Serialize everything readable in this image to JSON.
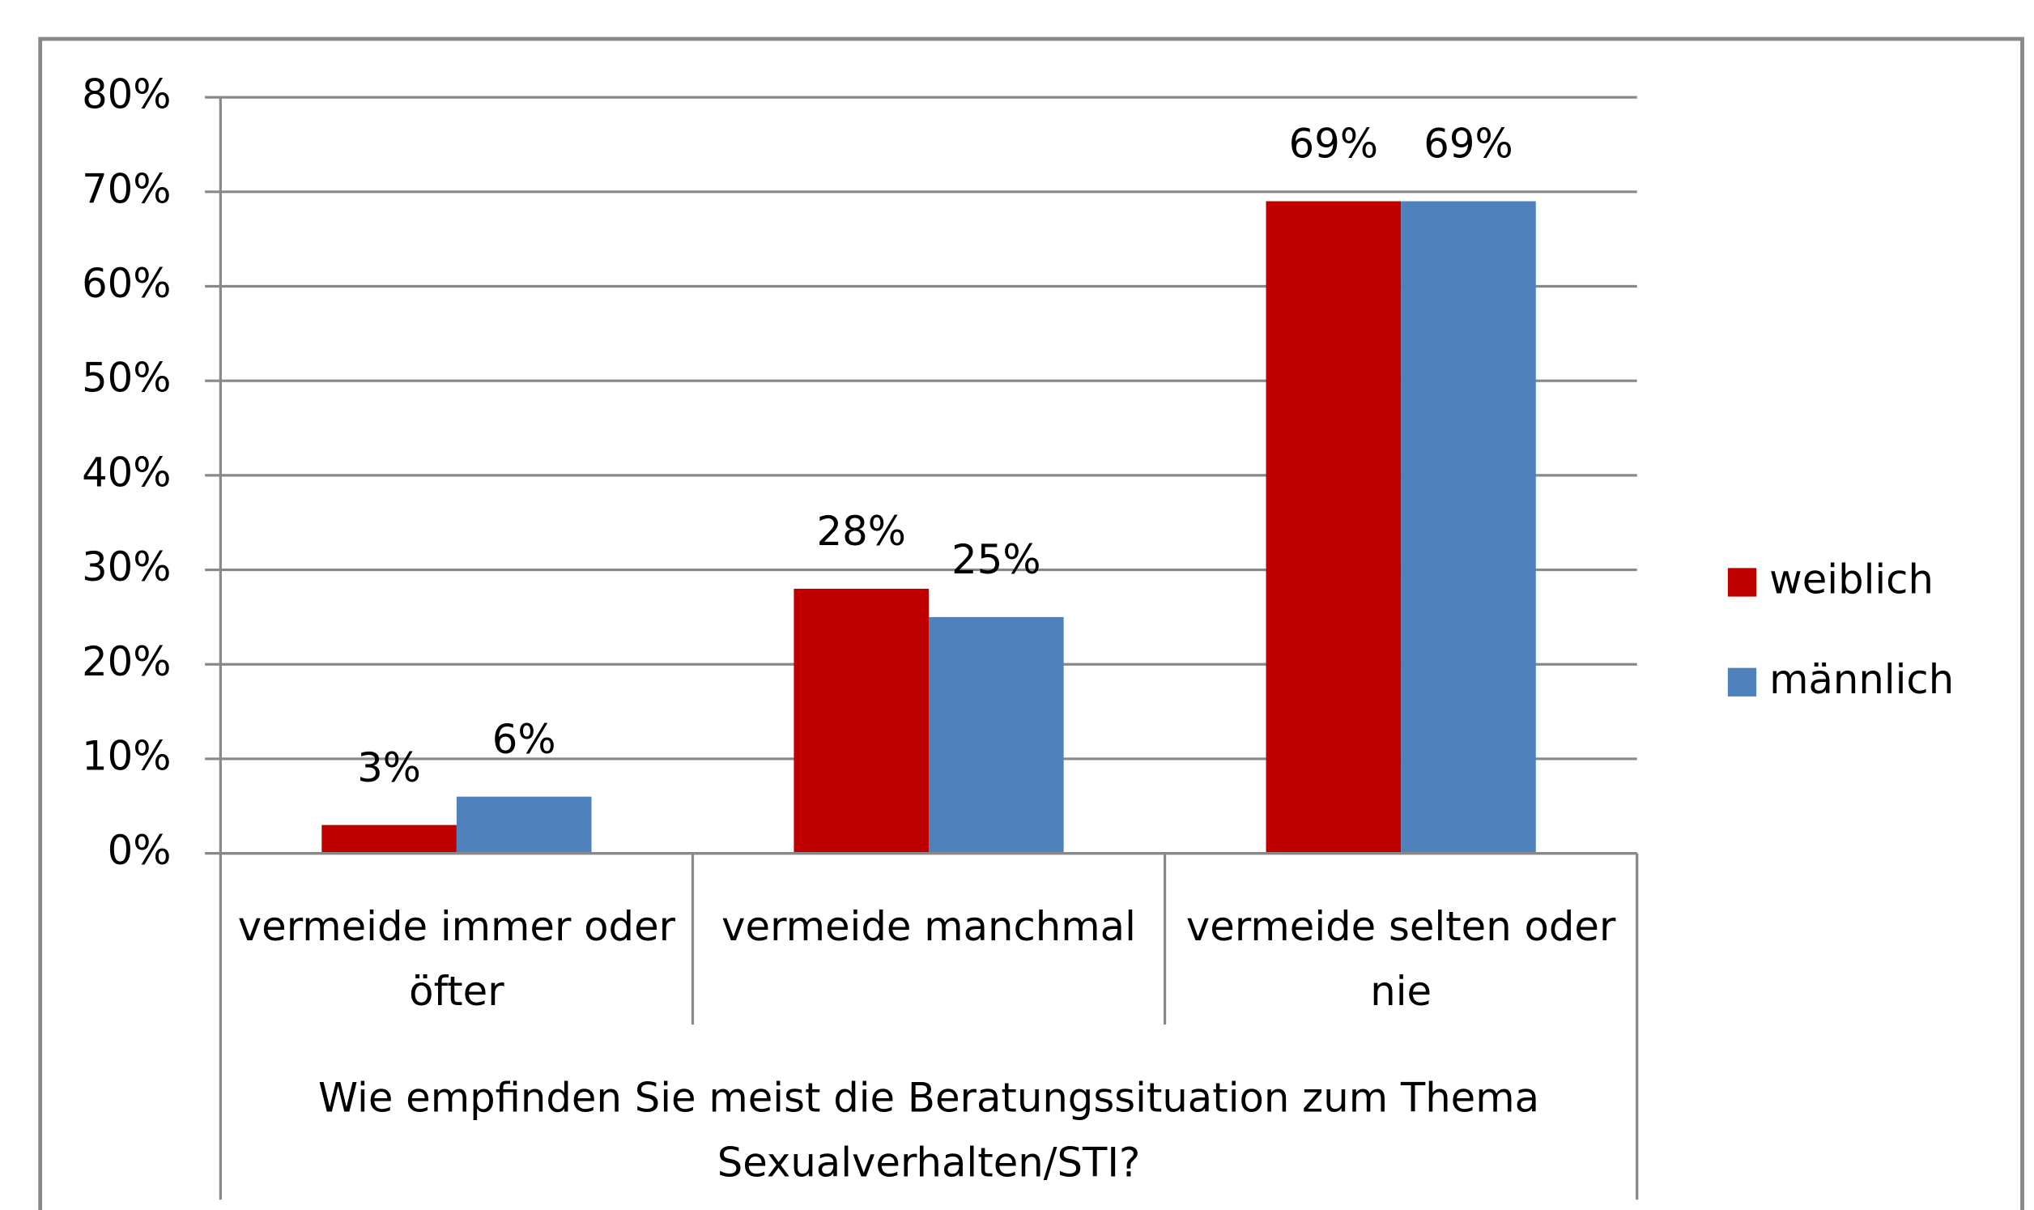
{
  "chart_data": {
    "type": "bar",
    "x_label": "Wie empfinden Sie meist die Beratungssituation zum Thema Sexualverhalten/STI?",
    "categories": [
      "vermeide immer oder öfter",
      "vermeide manchmal",
      "vermeide selten oder nie"
    ],
    "series": [
      {
        "name": "weiblich",
        "color": "#c00000",
        "values": [
          3,
          28,
          69
        ],
        "value_labels": [
          "3%",
          "28%",
          "69%"
        ]
      },
      {
        "name": "männlich",
        "color": "#4f81bd",
        "values": [
          6,
          25,
          69
        ],
        "value_labels": [
          "6%",
          "25%",
          "69%"
        ]
      }
    ],
    "ylim": [
      0,
      80
    ],
    "yticks": [
      {
        "value": 0,
        "label": "0%"
      },
      {
        "value": 10,
        "label": "10%"
      },
      {
        "value": 20,
        "label": "20%"
      },
      {
        "value": 30,
        "label": "30%"
      },
      {
        "value": 40,
        "label": "40%"
      },
      {
        "value": 50,
        "label": "50%"
      },
      {
        "value": 60,
        "label": "60%"
      },
      {
        "value": 70,
        "label": "70%"
      },
      {
        "value": 80,
        "label": "80%"
      }
    ],
    "grid": true,
    "legend": "right"
  }
}
